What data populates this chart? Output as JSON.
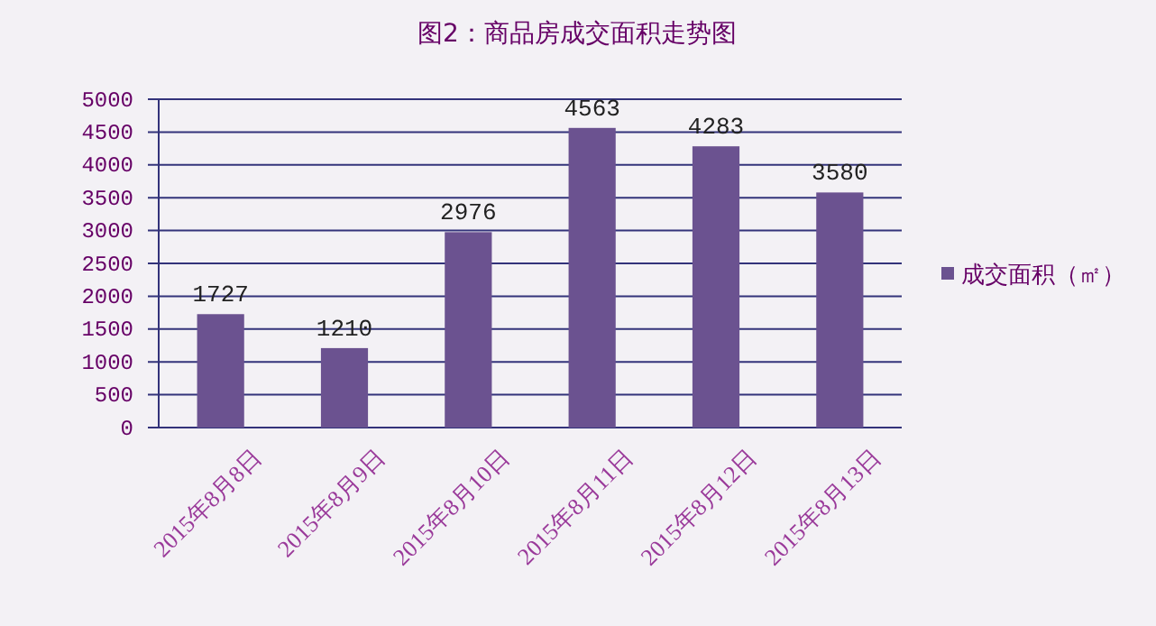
{
  "chart_data": {
    "type": "bar",
    "title": "图2：商品房成交面积走势图",
    "categories": [
      "2015年8月8日",
      "2015年8月9日",
      "2015年8月10日",
      "2015年8月11日",
      "2015年8月12日",
      "2015年8月13日"
    ],
    "series": [
      {
        "name": "成交面积（㎡）",
        "color": "#6b5290",
        "values": [
          1727,
          1210,
          2976,
          4563,
          4283,
          3580
        ]
      }
    ],
    "ylim": [
      0,
      5000
    ],
    "yticks": [
      0,
      500,
      1000,
      1500,
      2000,
      2500,
      3000,
      3500,
      4000,
      4500,
      5000
    ],
    "grid": "y",
    "legend": "right",
    "data_labels": true
  }
}
